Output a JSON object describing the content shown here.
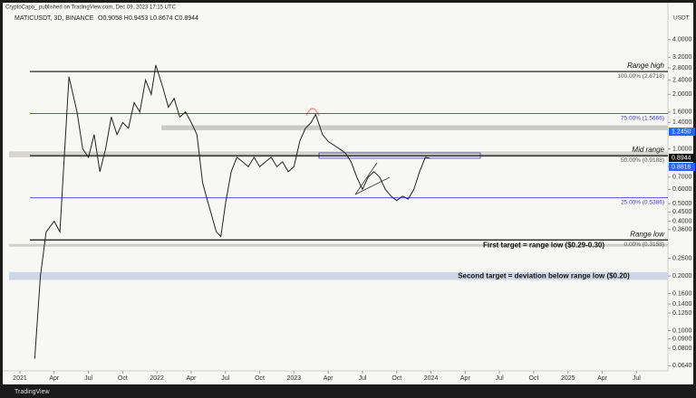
{
  "chart_data": {
    "type": "line",
    "header": "CryptoCapo_ published on TradingView.com, Dec 09, 2023 17:15 UTC",
    "symbol": "MATICUSDT, 3D, BINANCE",
    "ohlc": "O0.9058 H0.9453 L0.8674 C0.8944",
    "axis_unit": "USDT",
    "footer": "TradingView",
    "log_scale": true,
    "color": "#222222",
    "x": [
      1.3,
      1.8,
      2.3,
      3,
      3.5,
      4.3,
      5,
      5.5,
      6,
      6.5,
      7,
      7.5,
      8,
      8.5,
      9,
      9.5,
      10,
      10.5,
      11,
      11.5,
      11.9,
      12.5,
      13,
      13.5,
      14,
      14.5,
      15,
      15.5,
      16,
      16.5,
      17.2,
      17.6,
      18,
      18.5,
      19,
      19.5,
      20,
      20.5,
      21,
      21.5,
      22,
      22.5,
      23,
      23.5,
      24,
      24.5,
      25,
      25.5,
      25.9,
      26.5,
      27,
      27.5,
      28,
      28.5,
      29,
      29.5,
      30,
      30.5,
      31,
      31.5,
      32,
      32.5,
      33,
      33.5,
      34,
      34.5,
      35,
      35.5,
      35.9
    ],
    "values": [
      0.07,
      0.2,
      0.35,
      0.4,
      0.35,
      2.5,
      1.6,
      1.0,
      0.9,
      1.2,
      0.75,
      1.0,
      1.5,
      1.2,
      1.4,
      1.3,
      1.8,
      1.6,
      2.4,
      2.0,
      2.9,
      2.2,
      1.7,
      1.9,
      1.5,
      1.6,
      1.4,
      1.2,
      0.65,
      0.5,
      0.35,
      0.33,
      0.5,
      0.75,
      0.9,
      0.85,
      0.8,
      0.9,
      0.8,
      0.85,
      0.9,
      0.8,
      0.85,
      0.75,
      0.8,
      1.1,
      1.3,
      1.4,
      1.55,
      1.2,
      1.1,
      1.05,
      1.0,
      0.95,
      0.85,
      0.7,
      0.6,
      0.7,
      0.75,
      0.7,
      0.6,
      0.55,
      0.52,
      0.55,
      0.53,
      0.6,
      0.75,
      0.9,
      0.89
    ],
    "xlim": [
      -0.95,
      56.75
    ],
    "ylim": [
      0.06,
      5.9
    ],
    "xticks": [
      {
        "value": 0,
        "label": "2021"
      },
      {
        "value": 3,
        "label": "Apr"
      },
      {
        "value": 6,
        "label": "Jul"
      },
      {
        "value": 9,
        "label": "Oct"
      },
      {
        "value": 12,
        "label": "2022"
      },
      {
        "value": 15,
        "label": "Apr"
      },
      {
        "value": 18,
        "label": "Jul"
      },
      {
        "value": 21,
        "label": "Oct"
      },
      {
        "value": 24,
        "label": "2023"
      },
      {
        "value": 27,
        "label": "Apr"
      },
      {
        "value": 30,
        "label": "Jul"
      },
      {
        "value": 33,
        "label": "Oct"
      },
      {
        "value": 36,
        "label": "2024"
      },
      {
        "value": 39,
        "label": "Apr"
      },
      {
        "value": 42,
        "label": "Jul"
      },
      {
        "value": 45,
        "label": "Oct"
      },
      {
        "value": 48,
        "label": "2025"
      },
      {
        "value": 51,
        "label": "Apr"
      },
      {
        "value": 54,
        "label": "Jul"
      }
    ],
    "yticks": [
      {
        "value": 4,
        "label": "4.0000"
      },
      {
        "value": 3.2,
        "label": "3.2000"
      },
      {
        "value": 2.8,
        "label": "2.8000"
      },
      {
        "value": 2.4,
        "label": "2.4000"
      },
      {
        "value": 2,
        "label": "2.0000"
      },
      {
        "value": 1.6,
        "label": "1.6000"
      },
      {
        "value": 1.4,
        "label": "1.4000"
      },
      {
        "value": 1,
        "label": "1.0000"
      },
      {
        "value": 0.8,
        "label": "0.8000"
      },
      {
        "value": 0.7,
        "label": "0.7000"
      },
      {
        "value": 0.6,
        "label": "0.6000"
      },
      {
        "value": 0.5,
        "label": "0.5000"
      },
      {
        "value": 0.45,
        "label": "0.4500"
      },
      {
        "value": 0.4,
        "label": "0.4000"
      },
      {
        "value": 0.36,
        "label": "0.3600"
      },
      {
        "value": 0.25,
        "label": "0.2500"
      },
      {
        "value": 0.2,
        "label": "0.2000"
      },
      {
        "value": 0.16,
        "label": "0.1600"
      },
      {
        "value": 0.14,
        "label": "0.1400"
      },
      {
        "value": 0.125,
        "label": "0.1250"
      },
      {
        "value": 0.1,
        "label": "0.1000"
      },
      {
        "value": 0.09,
        "label": "0.0900"
      },
      {
        "value": 0.08,
        "label": "0.0800"
      },
      {
        "value": 0.064,
        "label": "0.0640"
      }
    ],
    "levels": [
      {
        "value": 2.6718,
        "name": "Range high",
        "label": "100.00% (2.6718)",
        "color": "#111111"
      },
      {
        "value": 1.5666,
        "label": "75.00% (1.5666)",
        "color": "#3f3fbf"
      },
      {
        "value": 0.9188,
        "name": "Mid range",
        "label": "50.00% (0.9188)",
        "color": "#111111"
      },
      {
        "value": 0.5386,
        "label": "25.00% (0.5386)",
        "color": "#3f3fbf"
      },
      {
        "value": 0.3158,
        "name": "Range low",
        "label": "0.00% (0.3158)",
        "color": "#111111"
      }
    ],
    "zones": [
      {
        "low": 1.27,
        "high": 1.35,
        "x_start": 12.4,
        "color": "#c9c9c9"
      },
      {
        "low": 0.9,
        "high": 0.97,
        "color": "#d6d6cf"
      },
      {
        "low": 0.29,
        "high": 0.3,
        "color": "#cfcfc8",
        "label": "First target = range low ($0.29-0.30)"
      },
      {
        "low": 0.19,
        "high": 0.21,
        "color": "#cfd6e8",
        "label": "Second target = deviation below range low ($0.20)"
      }
    ],
    "price_labels": [
      {
        "value": 1.245,
        "label": "1.2450",
        "color": "#2962ff"
      },
      {
        "value": 0.8944,
        "label": "0.8944",
        "color": "#111111"
      },
      {
        "value": 0.8816,
        "label": "0.8816",
        "color": "#2962ff"
      }
    ]
  }
}
